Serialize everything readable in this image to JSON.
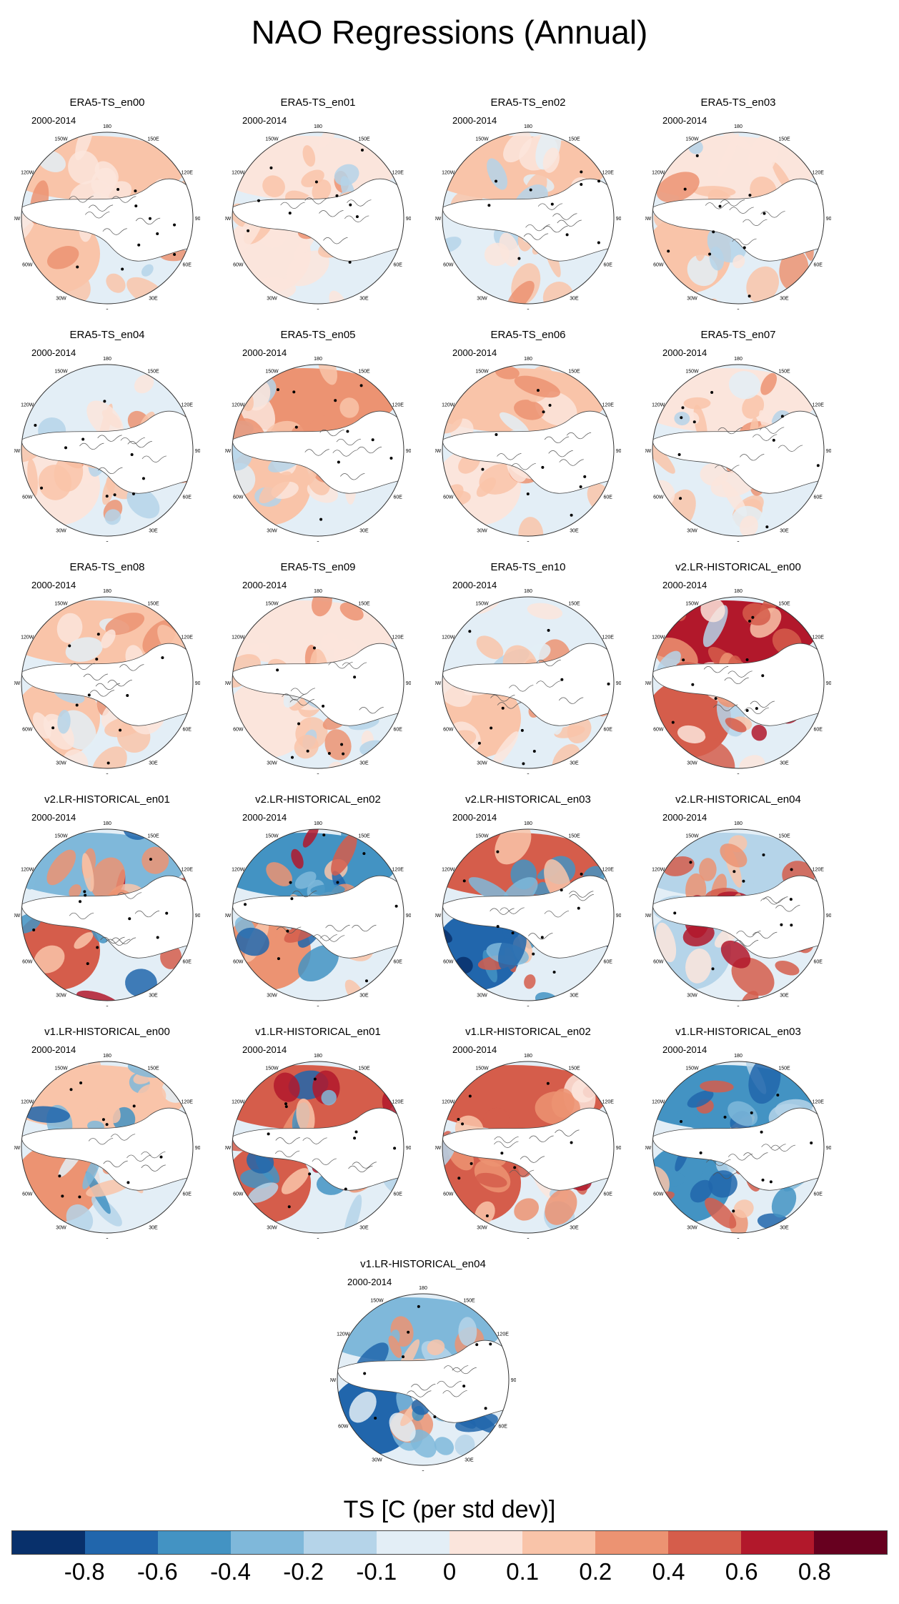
{
  "figure": {
    "title": "NAO Regressions (Annual)",
    "period_label": "2000-2014",
    "longitude_labels": [
      "180",
      "150E",
      "120E",
      "90E",
      "60E",
      "30E",
      "0",
      "30W",
      "60W",
      "90W",
      "120W",
      "150W"
    ],
    "panels": [
      {
        "title": "ERA5-TS_en00",
        "style": "era5"
      },
      {
        "title": "ERA5-TS_en01",
        "style": "era5"
      },
      {
        "title": "ERA5-TS_en02",
        "style": "era5"
      },
      {
        "title": "ERA5-TS_en03",
        "style": "era5"
      },
      {
        "title": "ERA5-TS_en04",
        "style": "era5"
      },
      {
        "title": "ERA5-TS_en05",
        "style": "era5"
      },
      {
        "title": "ERA5-TS_en06",
        "style": "era5"
      },
      {
        "title": "ERA5-TS_en07",
        "style": "era5"
      },
      {
        "title": "ERA5-TS_en08",
        "style": "era5"
      },
      {
        "title": "ERA5-TS_en09",
        "style": "era5"
      },
      {
        "title": "ERA5-TS_en10",
        "style": "era5"
      },
      {
        "title": "v2.LR-HISTORICAL_en00",
        "style": "warm"
      },
      {
        "title": "v2.LR-HISTORICAL_en01",
        "style": "mixed"
      },
      {
        "title": "v2.LR-HISTORICAL_en02",
        "style": "mixed"
      },
      {
        "title": "v2.LR-HISTORICAL_en03",
        "style": "cold"
      },
      {
        "title": "v2.LR-HISTORICAL_en04",
        "style": "warm"
      },
      {
        "title": "v1.LR-HISTORICAL_en00",
        "style": "cool"
      },
      {
        "title": "v1.LR-HISTORICAL_en01",
        "style": "mixed"
      },
      {
        "title": "v1.LR-HISTORICAL_en02",
        "style": "warm"
      },
      {
        "title": "v1.LR-HISTORICAL_en03",
        "style": "mixed"
      },
      {
        "title": "v1.LR-HISTORICAL_en04",
        "style": "cool"
      }
    ]
  },
  "colorbar": {
    "title": "TS [C (per std dev)]",
    "colors": [
      "#08306b",
      "#2166ac",
      "#4393c3",
      "#7fb8da",
      "#b5d4e9",
      "#e3eef6",
      "#fbe5dc",
      "#f9c4a9",
      "#ec9372",
      "#d55d4b",
      "#b2182b",
      "#67001f"
    ],
    "tick_labels": [
      "-0.8",
      "-0.6",
      "-0.4",
      "-0.2",
      "-0.1",
      "0",
      "0.1",
      "0.2",
      "0.4",
      "0.6",
      "0.8"
    ]
  }
}
